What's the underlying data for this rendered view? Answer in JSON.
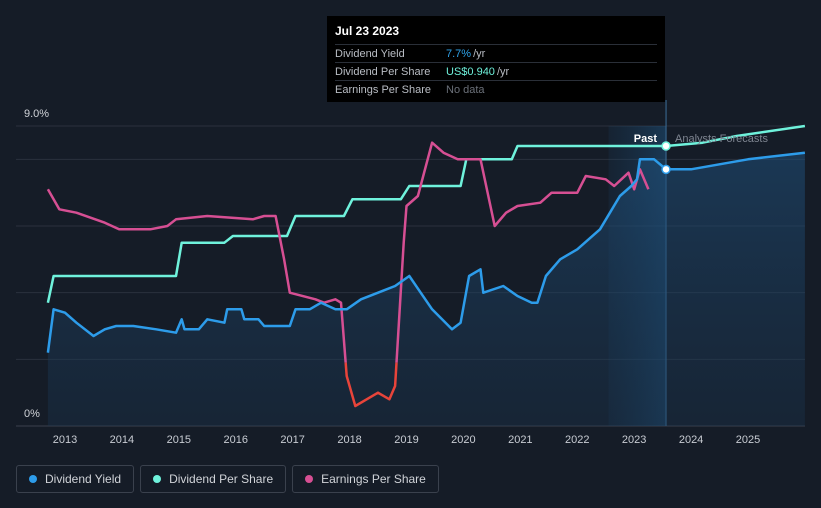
{
  "tooltip": {
    "date": "Jul 23 2023",
    "rows": [
      {
        "label": "Dividend Yield",
        "value": "7.7%",
        "unit": "/yr"
      },
      {
        "label": "Dividend Per Share",
        "value": "US$0.940",
        "unit": "/yr"
      },
      {
        "label": "Earnings Per Share",
        "value": "No data",
        "unit": ""
      }
    ]
  },
  "labels": {
    "past": "Past",
    "forecast": "Analysts Forecasts"
  },
  "colors": {
    "yield": "#2d9cea",
    "dps": "#6ff2dc",
    "eps": "#d64f93",
    "eps_low": "#e8443a",
    "background": "#151c27"
  },
  "legend": [
    {
      "label": "Dividend Yield",
      "color": "#2d9cea"
    },
    {
      "label": "Dividend Per Share",
      "color": "#6ff2dc"
    },
    {
      "label": "Earnings Per Share",
      "color": "#d64f93"
    }
  ],
  "chart_data": {
    "type": "line",
    "title": "",
    "xlabel": "",
    "ylabel": "",
    "ylim": [
      0,
      9.0
    ],
    "y_tick_labels": [
      "9.0%",
      "0%"
    ],
    "x_tick_labels": [
      "2013",
      "2014",
      "2015",
      "2016",
      "2017",
      "2018",
      "2019",
      "2020",
      "2021",
      "2022",
      "2023",
      "2024",
      "2025"
    ],
    "x_range": [
      2012.65,
      2026.0
    ],
    "today": 2023.56,
    "forecast_start": 2022.55,
    "series": [
      {
        "name": "Dividend Yield",
        "unit": "%",
        "points": [
          [
            2012.7,
            2.2
          ],
          [
            2012.8,
            3.5
          ],
          [
            2013.0,
            3.4
          ],
          [
            2013.2,
            3.1
          ],
          [
            2013.5,
            2.7
          ],
          [
            2013.7,
            2.9
          ],
          [
            2013.9,
            3.0
          ],
          [
            2014.2,
            3.0
          ],
          [
            2014.6,
            2.9
          ],
          [
            2014.95,
            2.8
          ],
          [
            2015.05,
            3.2
          ],
          [
            2015.1,
            2.9
          ],
          [
            2015.35,
            2.9
          ],
          [
            2015.5,
            3.2
          ],
          [
            2015.8,
            3.1
          ],
          [
            2015.85,
            3.5
          ],
          [
            2016.1,
            3.5
          ],
          [
            2016.15,
            3.2
          ],
          [
            2016.4,
            3.2
          ],
          [
            2016.5,
            3.0
          ],
          [
            2016.95,
            3.0
          ],
          [
            2017.05,
            3.5
          ],
          [
            2017.3,
            3.5
          ],
          [
            2017.5,
            3.7
          ],
          [
            2017.75,
            3.5
          ],
          [
            2017.95,
            3.5
          ],
          [
            2018.2,
            3.8
          ],
          [
            2018.5,
            4.0
          ],
          [
            2018.8,
            4.2
          ],
          [
            2019.05,
            4.5
          ],
          [
            2019.25,
            4.0
          ],
          [
            2019.45,
            3.5
          ],
          [
            2019.8,
            2.9
          ],
          [
            2019.95,
            3.1
          ],
          [
            2020.1,
            4.5
          ],
          [
            2020.3,
            4.7
          ],
          [
            2020.35,
            4.0
          ],
          [
            2020.7,
            4.2
          ],
          [
            2020.95,
            3.9
          ],
          [
            2021.2,
            3.7
          ],
          [
            2021.3,
            3.7
          ],
          [
            2021.45,
            4.5
          ],
          [
            2021.7,
            5.0
          ],
          [
            2022.0,
            5.3
          ],
          [
            2022.4,
            5.9
          ],
          [
            2022.75,
            6.9
          ],
          [
            2022.95,
            7.2
          ],
          [
            2023.05,
            7.4
          ],
          [
            2023.1,
            8.0
          ],
          [
            2023.35,
            8.0
          ],
          [
            2023.56,
            7.7
          ],
          [
            2024.0,
            7.7
          ],
          [
            2024.5,
            7.85
          ],
          [
            2025.0,
            8.0
          ],
          [
            2026.0,
            8.2
          ]
        ]
      },
      {
        "name": "Dividend Per Share",
        "unit": "US$",
        "points": [
          [
            2012.7,
            3.7
          ],
          [
            2012.8,
            4.5
          ],
          [
            2013.0,
            4.5
          ],
          [
            2014.95,
            4.5
          ],
          [
            2015.05,
            5.5
          ],
          [
            2015.8,
            5.5
          ],
          [
            2015.95,
            5.7
          ],
          [
            2016.9,
            5.7
          ],
          [
            2017.05,
            6.3
          ],
          [
            2017.9,
            6.3
          ],
          [
            2018.05,
            6.8
          ],
          [
            2018.9,
            6.8
          ],
          [
            2019.05,
            7.2
          ],
          [
            2019.95,
            7.2
          ],
          [
            2020.05,
            8.0
          ],
          [
            2020.85,
            8.0
          ],
          [
            2020.95,
            8.4
          ],
          [
            2023.56,
            8.4
          ],
          [
            2024.2,
            8.5
          ],
          [
            2024.8,
            8.7
          ],
          [
            2026.0,
            9.0
          ]
        ]
      },
      {
        "name": "Earnings Per Share",
        "unit": "",
        "points": [
          [
            2012.7,
            7.1
          ],
          [
            2012.9,
            6.5
          ],
          [
            2013.2,
            6.4
          ],
          [
            2013.7,
            6.1
          ],
          [
            2013.95,
            5.9
          ],
          [
            2014.5,
            5.9
          ],
          [
            2014.8,
            6.0
          ],
          [
            2014.95,
            6.2
          ],
          [
            2015.5,
            6.3
          ],
          [
            2016.3,
            6.2
          ],
          [
            2016.5,
            6.3
          ],
          [
            2016.7,
            6.3
          ],
          [
            2016.85,
            5.0
          ],
          [
            2016.95,
            4.0
          ],
          [
            2017.4,
            3.8
          ],
          [
            2017.55,
            3.7
          ],
          [
            2017.75,
            3.8
          ],
          [
            2017.85,
            3.7
          ],
          [
            2017.95,
            1.5
          ],
          [
            2018.1,
            0.6
          ],
          [
            2018.3,
            0.8
          ],
          [
            2018.5,
            1.0
          ],
          [
            2018.7,
            0.8
          ],
          [
            2018.8,
            1.2
          ],
          [
            2018.95,
            5.5
          ],
          [
            2019.0,
            6.6
          ],
          [
            2019.2,
            6.9
          ],
          [
            2019.45,
            8.5
          ],
          [
            2019.65,
            8.2
          ],
          [
            2019.9,
            8.0
          ],
          [
            2020.3,
            8.0
          ],
          [
            2020.45,
            6.8
          ],
          [
            2020.55,
            6.0
          ],
          [
            2020.75,
            6.4
          ],
          [
            2020.95,
            6.6
          ],
          [
            2021.35,
            6.7
          ],
          [
            2021.55,
            7.0
          ],
          [
            2022.0,
            7.0
          ],
          [
            2022.15,
            7.5
          ],
          [
            2022.5,
            7.4
          ],
          [
            2022.65,
            7.2
          ],
          [
            2022.9,
            7.6
          ],
          [
            2023.0,
            7.1
          ],
          [
            2023.1,
            7.7
          ],
          [
            2023.25,
            7.1
          ]
        ]
      }
    ]
  }
}
